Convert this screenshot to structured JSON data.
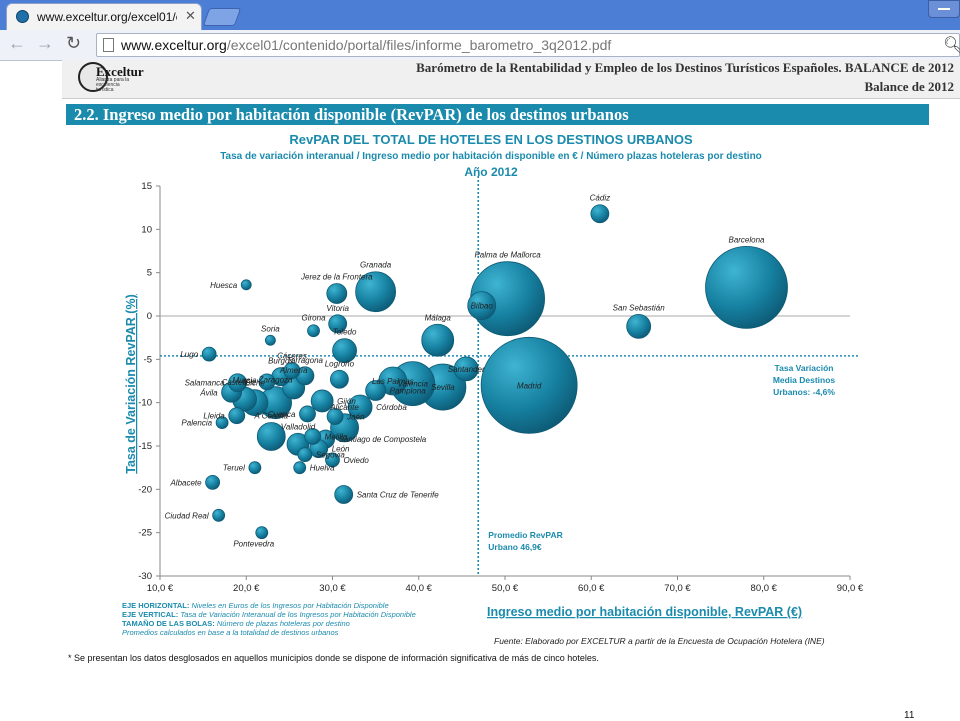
{
  "browser": {
    "tab_title": "www.exceltur.org/excel01/c",
    "url_host": "www.exceltur.org",
    "url_path": "/excel01/contenido/portal/files/informe_barometro_3q2012.pdf"
  },
  "doc": {
    "logo_text": "Exceltur",
    "logo_sub": "Alianza para la excelencia turística",
    "report_title": "Barómetro de la Rentabilidad  y Empleo de los Destinos Turísticos Españoles. BALANCE de 2012",
    "report_sub": "Balance de 2012",
    "section_title": "2.2. Ingreso medio por habitación disponible (RevPAR) de los destinos urbanos",
    "footnote": "* Se presentan los datos desglosados en aquellos municipios donde se dispone de información significativa de más de cinco hoteles.",
    "page_number": "11"
  },
  "chart_data": {
    "type": "scatter",
    "title": "RevPAR DEL TOTAL DE HOTELES EN LOS DESTINOS URBANOS",
    "subtitle": "Tasa de variación interanual / Ingreso medio por habitación disponible en € / Número plazas hoteleras por destino",
    "year": "Año 2012",
    "xlabel": "Ingreso medio por habitación disponible, RevPAR (€)",
    "ylabel": "Tasa de Variación RevPAR (%)",
    "xlim": [
      10,
      90
    ],
    "ylim": [
      -30,
      15
    ],
    "xticks": [
      "10,0 €",
      "20,0 €",
      "30,0 €",
      "40,0 €",
      "50,0 €",
      "60,0 €",
      "70,0 €",
      "80,0 €",
      "90,0 €"
    ],
    "yticks": [
      "15",
      "10",
      "5",
      "0",
      "-5",
      "-10",
      "-15",
      "-20",
      "-25",
      "-30"
    ],
    "bubble_color": "#1680a0",
    "accent_color": "#1b8bad",
    "ref_x": 46.9,
    "ref_y": -4.6,
    "ref_x_label": [
      "Promedio RevPAR",
      "Urbano 46,9€"
    ],
    "ref_y_label": [
      "Tasa Variación",
      "Media Destinos",
      "Urbanos: -4,6%"
    ],
    "points": [
      {
        "name": "Cádiz",
        "x": 61.0,
        "y": 11.8,
        "size": 9
      },
      {
        "name": "Barcelona",
        "x": 78.0,
        "y": 3.3,
        "size": 41
      },
      {
        "name": "Palma de Mallorca",
        "x": 50.3,
        "y": 2.0,
        "size": 37
      },
      {
        "name": "Bilbao",
        "x": 47.3,
        "y": 1.2,
        "size": 14
      },
      {
        "name": "San Sebastián",
        "x": 65.5,
        "y": -1.2,
        "size": 12
      },
      {
        "name": "Madrid",
        "x": 52.8,
        "y": -8.0,
        "size": 48
      },
      {
        "name": "Granada",
        "x": 35.0,
        "y": 2.8,
        "size": 20
      },
      {
        "name": "Jerez de la Frontera",
        "x": 30.5,
        "y": 2.6,
        "size": 10
      },
      {
        "name": "Huesca",
        "x": 20.0,
        "y": 3.6,
        "size": 5
      },
      {
        "name": "Vitoria",
        "x": 30.6,
        "y": -0.9,
        "size": 9
      },
      {
        "name": "Girona",
        "x": 27.8,
        "y": -1.7,
        "size": 6
      },
      {
        "name": "Soria",
        "x": 22.8,
        "y": -2.8,
        "size": 5
      },
      {
        "name": "Toledo",
        "x": 31.4,
        "y": -4.0,
        "size": 12
      },
      {
        "name": "Málaga",
        "x": 42.2,
        "y": -2.8,
        "size": 16
      },
      {
        "name": "Lugo",
        "x": 15.7,
        "y": -4.4,
        "size": 7
      },
      {
        "name": "Santander",
        "x": 45.5,
        "y": -6.1,
        "size": 12
      },
      {
        "name": "Valencia",
        "x": 39.3,
        "y": -7.8,
        "size": 22
      },
      {
        "name": "Las Palmas",
        "x": 37.0,
        "y": -7.5,
        "size": 14
      },
      {
        "name": "Sevilla",
        "x": 42.8,
        "y": -8.2,
        "size": 23
      },
      {
        "name": "Burgos",
        "x": 24.0,
        "y": -7.0,
        "size": 9
      },
      {
        "name": "Cáceres",
        "x": 25.3,
        "y": -6.3,
        "size": 8
      },
      {
        "name": "Tarragona",
        "x": 26.8,
        "y": -6.9,
        "size": 9
      },
      {
        "name": "Salamanca",
        "x": 19.0,
        "y": -7.7,
        "size": 9
      },
      {
        "name": "Castellón",
        "x": 22.4,
        "y": -7.6,
        "size": 8
      },
      {
        "name": "Logroño",
        "x": 30.8,
        "y": -7.3,
        "size": 9
      },
      {
        "name": "Ávila",
        "x": 18.3,
        "y": -8.8,
        "size": 10
      },
      {
        "name": "Almería",
        "x": 25.5,
        "y": -8.3,
        "size": 11
      },
      {
        "name": "Pamplona",
        "x": 35.0,
        "y": -8.6,
        "size": 10
      },
      {
        "name": "Murcia",
        "x": 19.8,
        "y": -9.6,
        "size": 12
      },
      {
        "name": "Elche",
        "x": 21.0,
        "y": -10.0,
        "size": 13
      },
      {
        "name": "Zaragoza",
        "x": 23.4,
        "y": -10.0,
        "size": 16
      },
      {
        "name": "Gijón",
        "x": 28.8,
        "y": -9.8,
        "size": 11
      },
      {
        "name": "Lleida",
        "x": 18.9,
        "y": -11.5,
        "size": 8
      },
      {
        "name": "Cuenca",
        "x": 27.1,
        "y": -11.3,
        "size": 8
      },
      {
        "name": "Jaén",
        "x": 30.3,
        "y": -11.6,
        "size": 8
      },
      {
        "name": "Córdoba",
        "x": 33.2,
        "y": -10.5,
        "size": 12
      },
      {
        "name": "Palencia",
        "x": 17.2,
        "y": -12.3,
        "size": 6
      },
      {
        "name": "A Coruña",
        "x": 22.9,
        "y": -13.9,
        "size": 14
      },
      {
        "name": "Alicante",
        "x": 31.4,
        "y": -12.9,
        "size": 14
      },
      {
        "name": "Valladolid",
        "x": 26.0,
        "y": -14.8,
        "size": 11
      },
      {
        "name": "Melilla",
        "x": 27.7,
        "y": -13.9,
        "size": 8
      },
      {
        "name": "Santiago de Compostela",
        "x": 29.2,
        "y": -14.2,
        "size": 9
      },
      {
        "name": "León",
        "x": 28.4,
        "y": -15.3,
        "size": 9
      },
      {
        "name": "Segovia",
        "x": 26.8,
        "y": -16.0,
        "size": 7
      },
      {
        "name": "Oviedo",
        "x": 30.0,
        "y": -16.6,
        "size": 7
      },
      {
        "name": "Teruel",
        "x": 21.0,
        "y": -17.5,
        "size": 6
      },
      {
        "name": "Huelva",
        "x": 26.2,
        "y": -17.5,
        "size": 6
      },
      {
        "name": "Albacete",
        "x": 16.1,
        "y": -19.2,
        "size": 7
      },
      {
        "name": "Santa Cruz de Tenerife",
        "x": 31.3,
        "y": -20.6,
        "size": 9
      },
      {
        "name": "Ciudad Real",
        "x": 16.8,
        "y": -23.0,
        "size": 6
      },
      {
        "name": "Pontevedra",
        "x": 21.8,
        "y": -25.0,
        "size": 6
      }
    ],
    "bottom_notes": [
      {
        "label": "EJE HORIZONTAL:",
        "text": " Niveles en Euros de los Ingresos por Habitación Disponible"
      },
      {
        "label": "EJE VERTICAL:",
        "text": " Tasa de Variación Interanual de los Ingresos por Habitación Disponible"
      },
      {
        "label": "TAMAÑO DE LAS BOLAS:",
        "text": " Número de plazas hoteleras por destino"
      },
      {
        "label": "",
        "text": "Promedios calculados en base a la totalidad de destinos urbanos"
      }
    ],
    "source": "Fuente: Elaborado por EXCELTUR a partir de la Encuesta de Ocupación Hotelera (INE)"
  }
}
